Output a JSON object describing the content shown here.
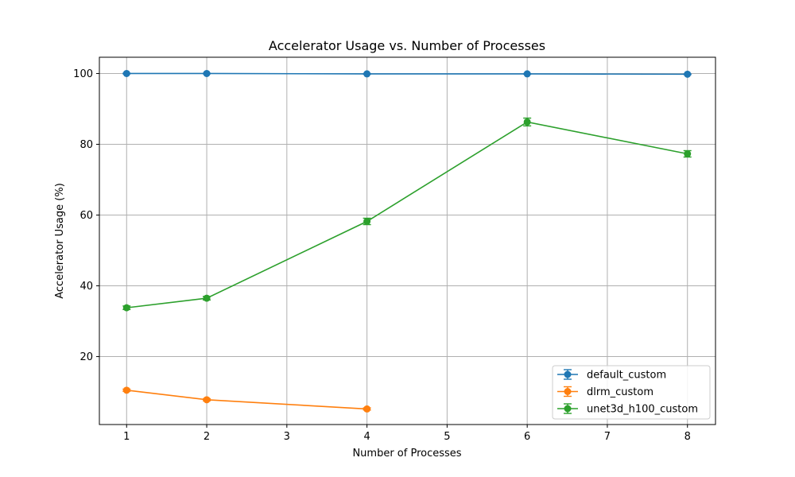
{
  "chart_data": {
    "type": "line",
    "title": "Accelerator Usage vs. Number of Processes",
    "xlabel": "Number of Processes",
    "ylabel": "Accelerator Usage (%)",
    "xlim": [
      0.66,
      8.35
    ],
    "ylim": [
      0.8,
      104.6
    ],
    "xticks": [
      1,
      2,
      3,
      4,
      5,
      6,
      7,
      8
    ],
    "yticks": [
      20,
      40,
      60,
      80,
      100
    ],
    "grid": true,
    "legend_position": "lower-right",
    "error_bars": true,
    "series": [
      {
        "name": "default_custom",
        "color": "#1f77b4",
        "x": [
          1,
          2,
          4,
          6,
          8
        ],
        "y": [
          100.0,
          100.0,
          99.9,
          99.9,
          99.8
        ],
        "err": [
          0.1,
          0.1,
          0.1,
          0.1,
          0.1
        ]
      },
      {
        "name": "dlrm_custom",
        "color": "#ff7f0e",
        "x": [
          1,
          2,
          4
        ],
        "y": [
          10.5,
          7.8,
          5.2
        ],
        "err": [
          0.3,
          0.3,
          0.3
        ]
      },
      {
        "name": "unet3d_h100_custom",
        "color": "#2ca02c",
        "x": [
          1,
          2,
          4,
          6,
          8
        ],
        "y": [
          33.8,
          36.5,
          58.2,
          86.3,
          77.3
        ],
        "err": [
          0.5,
          0.5,
          0.9,
          1.1,
          0.9
        ]
      }
    ]
  }
}
